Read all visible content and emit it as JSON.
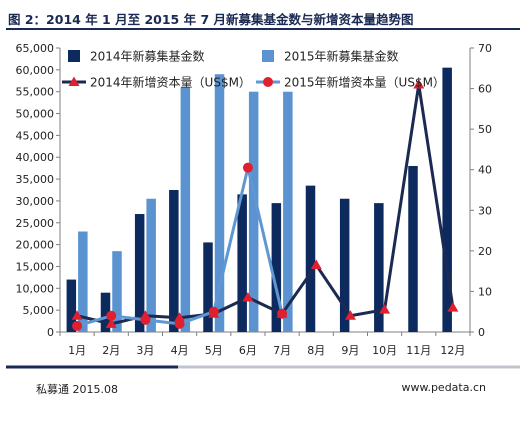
{
  "title": "图 2：2014 年 1 月至 2015 年 7 月新募集基金数与新增资本量趋势图",
  "footer": {
    "source": "私募通 2015.08",
    "site": "www.pedata.cn"
  },
  "colors": {
    "bar2014": "#0d2a5e",
    "bar2015": "#5b93d1",
    "line2014": "#1b2a52",
    "marker2014": "#e0202e",
    "line2015": "#5e97d4",
    "marker2015": "#e0202e",
    "topRule": "#1b2a52",
    "bottomRuleDark": "#1b2a52",
    "bottomRuleLight": "#bfc4cc"
  },
  "chart_data": {
    "type": "bar",
    "categories": [
      "1月",
      "2月",
      "3月",
      "4月",
      "5月",
      "6月",
      "7月",
      "8月",
      "9月",
      "10月",
      "11月",
      "12月"
    ],
    "series": [
      {
        "name": "2014年新募集基金数",
        "type": "bar",
        "axis": "left",
        "values": [
          12000,
          9000,
          27000,
          32500,
          20500,
          31500,
          29500,
          33500,
          30500,
          29500,
          38000,
          60500
        ]
      },
      {
        "name": "2015年新募集基金数",
        "type": "bar",
        "axis": "left",
        "values": [
          23000,
          18500,
          30500,
          56000,
          59000,
          55000,
          55000,
          null,
          null,
          null,
          null,
          null
        ]
      },
      {
        "name": "2014年新增资本量（US$M）",
        "type": "line",
        "axis": "right",
        "marker": "triangle",
        "values": [
          4,
          2,
          4,
          3.5,
          4.5,
          8.5,
          4.5,
          16.5,
          4,
          5.5,
          61,
          6
        ]
      },
      {
        "name": "2015年新增资本量（US$M）",
        "type": "line",
        "axis": "right",
        "marker": "circle",
        "values": [
          1.5,
          4,
          3,
          2,
          5,
          40.5,
          4.5,
          null,
          null,
          null,
          null,
          null
        ]
      }
    ],
    "yLeft": {
      "min": 0,
      "max": 65000,
      "step": 5000,
      "ticks": [
        "0",
        "5,000",
        "10,000",
        "15,000",
        "20,000",
        "25,000",
        "30,000",
        "35,000",
        "40,000",
        "45,000",
        "50,000",
        "55,000",
        "60,000",
        "65,000"
      ]
    },
    "yRight": {
      "min": 0,
      "max": 70,
      "step": 10,
      "ticks": [
        "0",
        "10",
        "20",
        "30",
        "40",
        "50",
        "60",
        "70"
      ]
    },
    "legend": "top-left"
  }
}
